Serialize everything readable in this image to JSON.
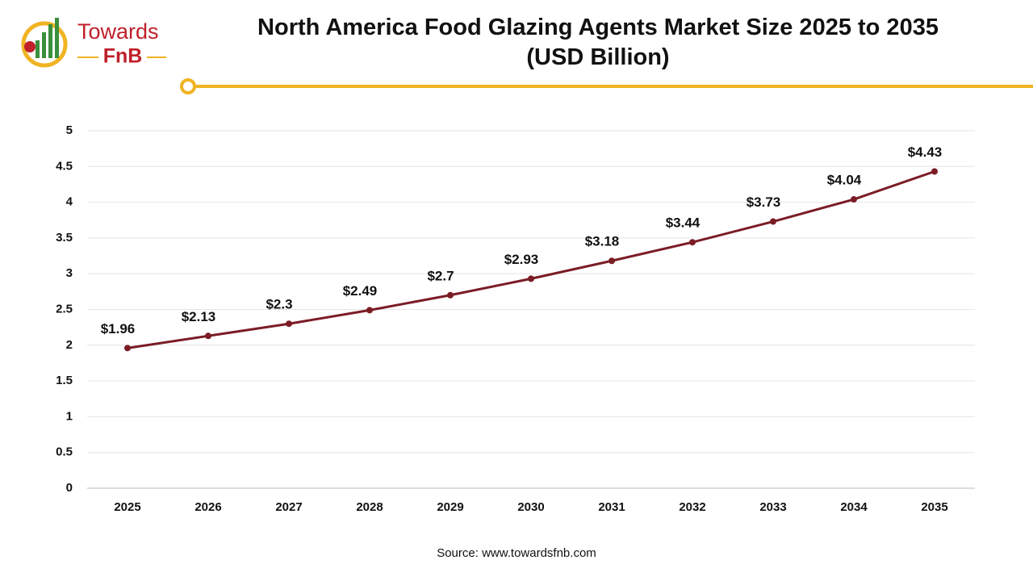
{
  "logo": {
    "line1": "Towards",
    "line2": "FnB"
  },
  "chart_data": {
    "type": "line",
    "title": "North America Food Glazing Agents Market Size 2025 to 2035 (USD Billion)",
    "categories": [
      "2025",
      "2026",
      "2027",
      "2028",
      "2029",
      "2030",
      "2031",
      "2032",
      "2033",
      "2034",
      "2035"
    ],
    "series": [
      {
        "name": "Market Size",
        "color": "#7b1c25",
        "values": [
          1.96,
          2.13,
          2.3,
          2.49,
          2.7,
          2.93,
          3.18,
          3.44,
          3.73,
          4.04,
          4.43
        ],
        "value_labels": [
          "$1.96",
          "$2.13",
          "$2.3",
          "$2.49",
          "$2.7",
          "$2.93",
          "$3.18",
          "$3.44",
          "$3.73",
          "$4.04",
          "$4.43"
        ]
      }
    ],
    "ylim": [
      0,
      5
    ],
    "yticks": [
      0,
      0.5,
      1,
      1.5,
      2,
      2.5,
      3,
      3.5,
      4,
      4.5,
      5
    ],
    "grid": true,
    "source": "Source: www.towardsfnb.com"
  }
}
